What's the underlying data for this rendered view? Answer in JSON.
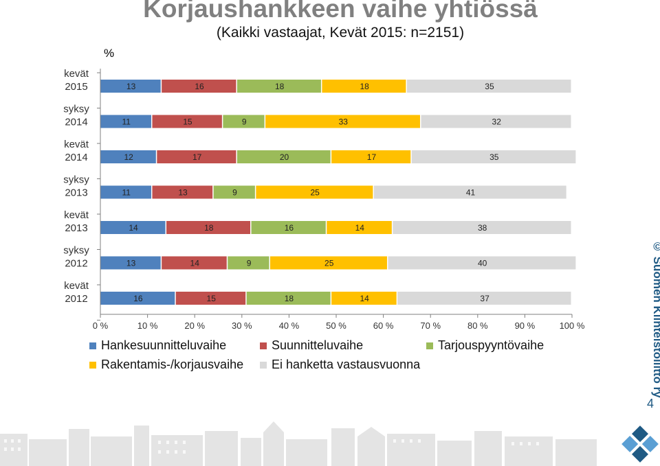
{
  "chart_data": {
    "type": "bar",
    "orientation": "horizontal",
    "stacked": true,
    "normalized": true,
    "title": "Korjaushankkeen vaihe yhtiössä",
    "subtitle": "(Kaikki vastaajat, Kevät 2015: n=2151)",
    "unit_label": "%",
    "categories": [
      "kevät 2015",
      "syksy 2014",
      "kevät 2014",
      "syksy 2013",
      "kevät 2013",
      "syksy 2012",
      "kevät 2012"
    ],
    "series": [
      {
        "name": "Hankesuunnitteluvaihe",
        "color": "#4f81bd",
        "values": [
          13,
          11,
          12,
          11,
          14,
          13,
          16
        ]
      },
      {
        "name": "Suunnitteluvaihe",
        "color": "#c0504d",
        "values": [
          16,
          15,
          17,
          13,
          18,
          14,
          15
        ]
      },
      {
        "name": "Tarjouspyyntövaihe",
        "color": "#9bbb59",
        "values": [
          18,
          9,
          20,
          9,
          16,
          9,
          18
        ]
      },
      {
        "name": "Rakentamis-/korjausvaihe",
        "color": "#ffc000",
        "values": [
          18,
          33,
          17,
          25,
          14,
          25,
          14
        ]
      },
      {
        "name": "Ei hanketta vastausvuonna",
        "color": "#d9d9d9",
        "values": [
          35,
          32,
          35,
          41,
          38,
          40,
          37
        ]
      }
    ],
    "xlim": [
      0,
      100
    ],
    "xticks": [
      "0 %",
      "10 %",
      "20 %",
      "30 %",
      "40 %",
      "50 %",
      "60 %",
      "70 %",
      "80 %",
      "90 %",
      "100 %"
    ],
    "legend_position": "bottom",
    "grid": false
  },
  "side_note": "© Suomen Kiinteistöliitto ry",
  "page_number": "4",
  "colors": {
    "title": "#808080",
    "brand": "#1f5a84",
    "logo_light": "#5a9fd4",
    "skyline": "#e4e4e4"
  }
}
